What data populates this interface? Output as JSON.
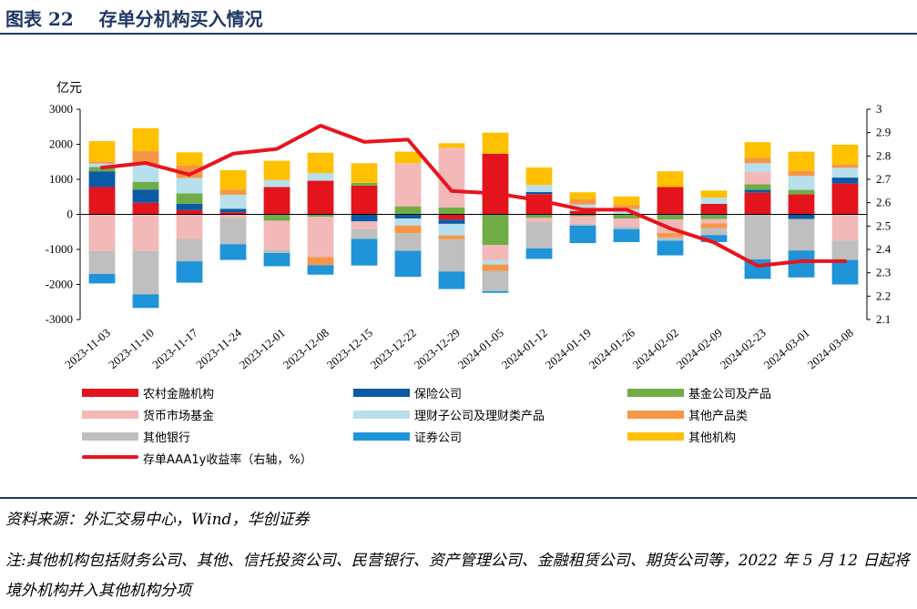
{
  "title": "图表 22    存单分机构买入情况",
  "unit_label": "亿元",
  "source": "资料来源：外汇交易中心，Wind，华创证券",
  "note": "注:其他机构包括财务公司、其他、信托投资公司、民营银行、资产管理公司、金融租赁公司、期货公司等，2022 年 5 月 12 日起将境外机构并入其他机构分项",
  "colors": {
    "title": "#1f3864",
    "rural": "#e3141c",
    "insurance": "#0c5aa6",
    "fund": "#70ad47",
    "mmf": "#f2b9b8",
    "wmp": "#b8dfec",
    "other_products": "#f79646",
    "other_banks": "#bfbfbf",
    "securities": "#1f94d8",
    "other_inst": "#ffc000",
    "yield_line": "#e8141d"
  },
  "chart_data": {
    "type": "bar",
    "stacked": true,
    "categories": [
      "2023-11-03",
      "2023-11-10",
      "2023-11-17",
      "2023-11-24",
      "2023-12-01",
      "2023-12-08",
      "2023-12-15",
      "2023-12-22",
      "2023-12-29",
      "2024-01-05",
      "2024-01-12",
      "2024-01-19",
      "2024-01-26",
      "2024-02-02",
      "2024-02-09",
      "2024-02-23",
      "2024-03-01",
      "2024-03-08"
    ],
    "left_axis": {
      "ylim": [
        -3000,
        3000
      ],
      "ticks": [
        "3000",
        "2000",
        "1000",
        "0",
        "-1000",
        "-2000",
        "-3000"
      ]
    },
    "right_axis": {
      "ylim": [
        2.1,
        3.0
      ],
      "ticks": [
        "3",
        "2.9",
        "2.8",
        "2.7",
        "2.6",
        "2.5",
        "2.4",
        "2.3",
        "2.2",
        "2.1"
      ]
    },
    "series": [
      {
        "key": "rural",
        "name": "农村金融机构",
        "values": [
          780,
          330,
          120,
          60,
          780,
          960,
          820,
          0,
          -150,
          1730,
          580,
          100,
          0,
          780,
          300,
          620,
          570,
          880
        ]
      },
      {
        "key": "insurance",
        "name": "保险公司",
        "values": [
          450,
          380,
          180,
          100,
          0,
          0,
          -200,
          -120,
          -120,
          0,
          60,
          0,
          0,
          0,
          0,
          80,
          -130,
          170
        ]
      },
      {
        "key": "fund",
        "name": "基金公司及产品",
        "values": [
          120,
          220,
          300,
          0,
          -180,
          -70,
          80,
          230,
          200,
          -870,
          -100,
          -50,
          -120,
          -150,
          -130,
          160,
          130,
          0
        ]
      },
      {
        "key": "mmf",
        "name": "货币市场基金",
        "values": [
          -1050,
          -1050,
          -700,
          -100,
          -830,
          -1150,
          -220,
          1230,
          1700,
          -440,
          -120,
          -220,
          -220,
          -380,
          -130,
          350,
          0,
          -750
        ]
      },
      {
        "key": "wmp",
        "name": "理财子公司及理财类产品",
        "values": [
          100,
          480,
          440,
          400,
          200,
          220,
          0,
          -200,
          -330,
          -120,
          200,
          180,
          150,
          0,
          180,
          250,
          400,
          280
        ]
      },
      {
        "key": "other_products",
        "name": "其他产品类",
        "values": [
          60,
          400,
          360,
          150,
          0,
          -230,
          0,
          -220,
          -110,
          -180,
          0,
          150,
          120,
          -120,
          -130,
          150,
          140,
          90
        ]
      },
      {
        "key": "other_banks",
        "name": "其他银行",
        "values": [
          -650,
          -1230,
          -640,
          -750,
          -90,
          0,
          -280,
          -500,
          -920,
          -580,
          -750,
          -50,
          -80,
          -100,
          -200,
          -1280,
          -900,
          -550
        ]
      },
      {
        "key": "securities",
        "name": "证券公司",
        "values": [
          -270,
          -390,
          -610,
          -450,
          -380,
          -270,
          -760,
          -740,
          -500,
          -50,
          -300,
          -500,
          -370,
          -420,
          -200,
          -560,
          -770,
          -700
        ]
      },
      {
        "key": "other_inst",
        "name": "其他机构",
        "values": [
          580,
          650,
          370,
          550,
          550,
          580,
          560,
          330,
          130,
          600,
          500,
          200,
          240,
          450,
          200,
          450,
          550,
          570
        ]
      }
    ],
    "line": {
      "name": "存单AAA1y收益率（右轴，%）",
      "axis": "right",
      "values": [
        2.75,
        2.77,
        2.72,
        2.81,
        2.83,
        2.93,
        2.86,
        2.87,
        2.65,
        2.64,
        2.61,
        2.57,
        2.57,
        2.49,
        2.43,
        2.33,
        2.35,
        2.35
      ]
    }
  }
}
